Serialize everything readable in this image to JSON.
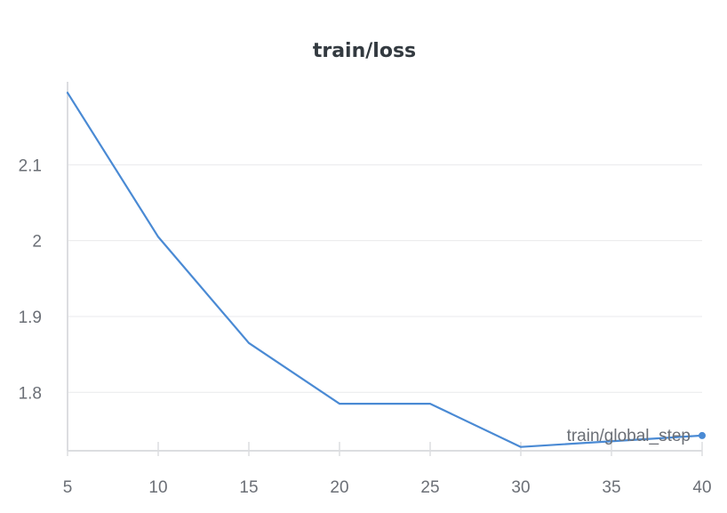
{
  "chart_data": {
    "type": "line",
    "title": "train/loss",
    "xlabel": "train/global_step",
    "ylabel": "",
    "x": [
      5,
      10,
      15,
      20,
      25,
      30,
      40
    ],
    "series": [
      {
        "values": [
          2.195,
          2.005,
          1.865,
          1.785,
          1.785,
          1.728,
          1.743
        ],
        "color": "#4a8ad4"
      }
    ],
    "xlim": [
      5,
      40
    ],
    "ylim": [
      1.723,
      2.2
    ],
    "x_ticks": [
      5,
      10,
      15,
      20,
      25,
      30,
      35,
      40
    ],
    "y_ticks": [
      1.8,
      1.9,
      2,
      2.1
    ],
    "x_tick_labels": [
      "5",
      "10",
      "15",
      "20",
      "25",
      "30",
      "35",
      "40"
    ],
    "y_tick_labels": [
      "1.8",
      "1.9",
      "2",
      "2.1"
    ],
    "grid": true,
    "legend": "none"
  }
}
